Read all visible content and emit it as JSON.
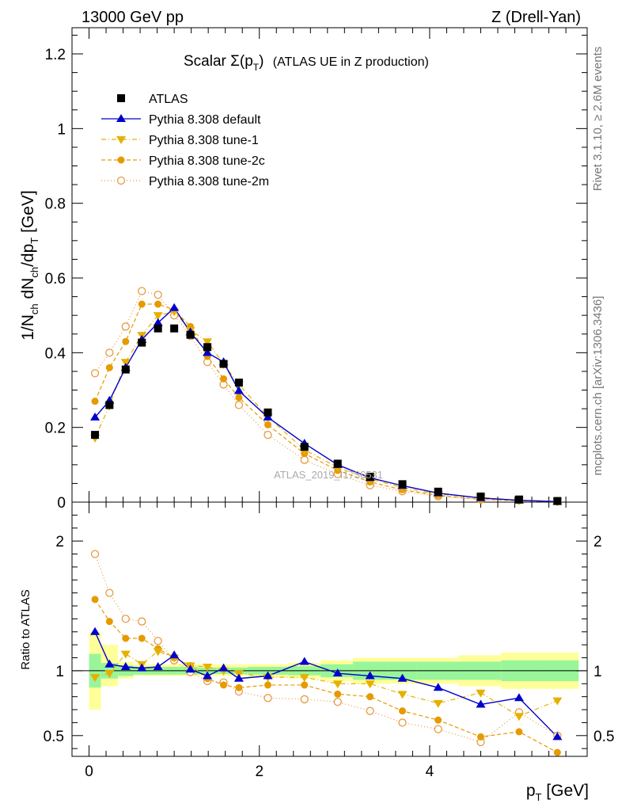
{
  "header": {
    "left": "13000 GeV pp",
    "right": "Z (Drell-Yan)"
  },
  "side_labels": {
    "rivet": "Rivet 3.1.10, ≥ 2.6M events",
    "mcplots": "mcplots.cern.ch [arXiv:1306.3436]"
  },
  "watermark": "ATLAS_2019_I1736531",
  "colors": {
    "atlas": "#000000",
    "default": "#0000cc",
    "tune1": "#e6b000",
    "tune2c": "#e69a00",
    "tune2m": "#e69a40",
    "band_inner": "#99f599",
    "band_outer": "#ffff99"
  },
  "chart_data": [
    {
      "panel": "main",
      "type": "scatter",
      "title_prefix": "Scalar ",
      "title_sigma": "Σ(p",
      "title_sub": "T",
      "title_close": ")",
      "title_suffix": "(ATLAS UE in Z production)",
      "ylabel": "1/N ch dN ch /dp T [GeV]",
      "xlim": [
        -0.2,
        5.85
      ],
      "ylim": [
        0,
        1.27
      ],
      "yticks": [
        {
          "v": 0.2,
          "label": "0.2"
        },
        {
          "v": 0.4,
          "label": "0.4"
        },
        {
          "v": 0.6,
          "label": "0.6"
        },
        {
          "v": 0.8,
          "label": "0.8"
        },
        {
          "v": 1.0,
          "label": "1"
        },
        {
          "v": 1.2,
          "label": "1.2"
        },
        {
          "v": 0.0,
          "label": "0"
        }
      ],
      "legend_position": "top-left",
      "x": [
        0.07,
        0.24,
        0.43,
        0.62,
        0.81,
        1.0,
        1.19,
        1.39,
        1.58,
        1.76,
        2.1,
        2.53,
        2.92,
        3.3,
        3.68,
        4.1,
        4.6,
        5.05,
        5.5
      ],
      "series": [
        {
          "key": "atlas",
          "name": "ATLAS",
          "marker": "square",
          "values": [
            0.18,
            0.26,
            0.355,
            0.427,
            0.465,
            0.465,
            0.448,
            0.415,
            0.37,
            0.32,
            0.24,
            0.148,
            0.103,
            0.068,
            0.048,
            0.028,
            0.015,
            0.007,
            0.003
          ]
        },
        {
          "key": "default",
          "name": "Pythia 8.308 default",
          "marker": "triangle-up",
          "line": "solid",
          "values": [
            0.227,
            0.272,
            0.36,
            0.435,
            0.48,
            0.52,
            0.455,
            0.4,
            0.375,
            0.298,
            0.227,
            0.157,
            0.1,
            0.065,
            0.044,
            0.024,
            0.011,
            0.005,
            0.0015
          ]
        },
        {
          "key": "tune1",
          "name": "Pythia 8.308 tune-1",
          "marker": "triangle-down",
          "line": "dashdot",
          "values": [
            0.172,
            0.258,
            0.375,
            0.447,
            0.5,
            0.51,
            0.46,
            0.43,
            0.37,
            0.315,
            0.228,
            0.14,
            0.093,
            0.062,
            0.039,
            0.021,
            0.0125,
            0.0045,
            0.0023
          ]
        },
        {
          "key": "tune2c",
          "name": "Pythia 8.308 tune-2c",
          "marker": "circle",
          "line": "dashed",
          "values": [
            0.27,
            0.36,
            0.43,
            0.53,
            0.53,
            0.515,
            0.47,
            0.39,
            0.33,
            0.28,
            0.207,
            0.13,
            0.085,
            0.054,
            0.033,
            0.018,
            0.0073,
            0.0037,
            0.0011
          ]
        },
        {
          "key": "tune2m",
          "name": "Pythia 8.308 tune-2m",
          "marker": "circle-open",
          "line": "dotted",
          "values": [
            0.345,
            0.4,
            0.47,
            0.565,
            0.555,
            0.5,
            0.445,
            0.375,
            0.315,
            0.26,
            0.18,
            0.113,
            0.075,
            0.045,
            0.029,
            0.0155,
            0.0068,
            0.0049,
            0.0015
          ]
        }
      ]
    },
    {
      "panel": "ratio",
      "type": "scatter",
      "ylabel": "Ratio to ATLAS",
      "xlabel": "p T [GeV]",
      "xlim": [
        -0.2,
        5.85
      ],
      "ylim": [
        0.34,
        2.3
      ],
      "yticks": [
        {
          "v": 0.5,
          "label": "0.5"
        },
        {
          "v": 1.0,
          "label": "1"
        },
        {
          "v": 2.0,
          "label": "2"
        }
      ],
      "xticks": [
        {
          "v": 0,
          "label": "0"
        },
        {
          "v": 2,
          "label": "2"
        },
        {
          "v": 4,
          "label": "4"
        }
      ],
      "reference_line": 1.0,
      "x": [
        0.07,
        0.24,
        0.43,
        0.62,
        0.81,
        1.0,
        1.19,
        1.39,
        1.58,
        1.76,
        2.1,
        2.53,
        2.92,
        3.3,
        3.68,
        4.1,
        4.6,
        5.05,
        5.5
      ],
      "bands": {
        "edges": [
          0.0,
          0.14,
          0.34,
          0.52,
          0.72,
          0.9,
          1.1,
          1.28,
          1.5,
          1.66,
          1.86,
          2.34,
          2.72,
          3.1,
          3.5,
          3.86,
          4.34,
          4.84,
          5.26,
          5.75
        ],
        "inner": [
          [
            0.87,
            1.13
          ],
          [
            0.94,
            1.06
          ],
          [
            0.96,
            1.04
          ],
          [
            0.97,
            1.03
          ],
          [
            0.97,
            1.03
          ],
          [
            0.97,
            1.03
          ],
          [
            0.97,
            1.03
          ],
          [
            0.975,
            1.025
          ],
          [
            0.975,
            1.025
          ],
          [
            0.975,
            1.025
          ],
          [
            0.97,
            1.03
          ],
          [
            0.965,
            1.035
          ],
          [
            0.95,
            1.05
          ],
          [
            0.93,
            1.07
          ],
          [
            0.93,
            1.07
          ],
          [
            0.93,
            1.07
          ],
          [
            0.93,
            1.07
          ],
          [
            0.92,
            1.08
          ],
          [
            0.92,
            1.08
          ]
        ],
        "outer": [
          [
            0.7,
            1.3
          ],
          [
            0.88,
            1.2
          ],
          [
            0.94,
            1.07
          ],
          [
            0.96,
            1.05
          ],
          [
            0.96,
            1.05
          ],
          [
            0.96,
            1.05
          ],
          [
            0.96,
            1.05
          ],
          [
            0.96,
            1.05
          ],
          [
            0.96,
            1.05
          ],
          [
            0.96,
            1.05
          ],
          [
            0.95,
            1.05
          ],
          [
            0.94,
            1.06
          ],
          [
            0.92,
            1.08
          ],
          [
            0.9,
            1.1
          ],
          [
            0.9,
            1.1
          ],
          [
            0.9,
            1.1
          ],
          [
            0.88,
            1.12
          ],
          [
            0.86,
            1.14
          ],
          [
            0.86,
            1.14
          ]
        ]
      },
      "series": [
        {
          "key": "default",
          "name": "Pythia 8.308 default",
          "values": [
            1.3,
            1.05,
            1.03,
            1.02,
            1.03,
            1.12,
            1.01,
            0.96,
            1.02,
            0.94,
            0.96,
            1.07,
            0.98,
            0.96,
            0.94,
            0.87,
            0.74,
            0.79,
            0.49
          ]
        },
        {
          "key": "tune1",
          "name": "Pythia 8.308 tune-1",
          "values": [
            0.95,
            0.98,
            1.13,
            1.05,
            1.15,
            1.1,
            1.04,
            1.03,
            1.0,
            0.98,
            0.95,
            0.95,
            0.9,
            0.9,
            0.82,
            0.75,
            0.83,
            0.65,
            0.77
          ]
        },
        {
          "key": "tune2c",
          "name": "Pythia 8.308 tune-2c",
          "values": [
            1.55,
            1.38,
            1.25,
            1.25,
            1.17,
            1.1,
            1.04,
            0.94,
            0.89,
            0.87,
            0.89,
            0.89,
            0.82,
            0.8,
            0.69,
            0.62,
            0.49,
            0.53,
            0.37
          ]
        },
        {
          "key": "tune2m",
          "name": "Pythia 8.308 tune-2m",
          "values": [
            1.9,
            1.6,
            1.4,
            1.38,
            1.23,
            1.08,
            0.99,
            0.92,
            0.91,
            0.84,
            0.79,
            0.78,
            0.76,
            0.69,
            0.6,
            0.55,
            0.45,
            0.68,
            0.5
          ]
        }
      ]
    }
  ]
}
